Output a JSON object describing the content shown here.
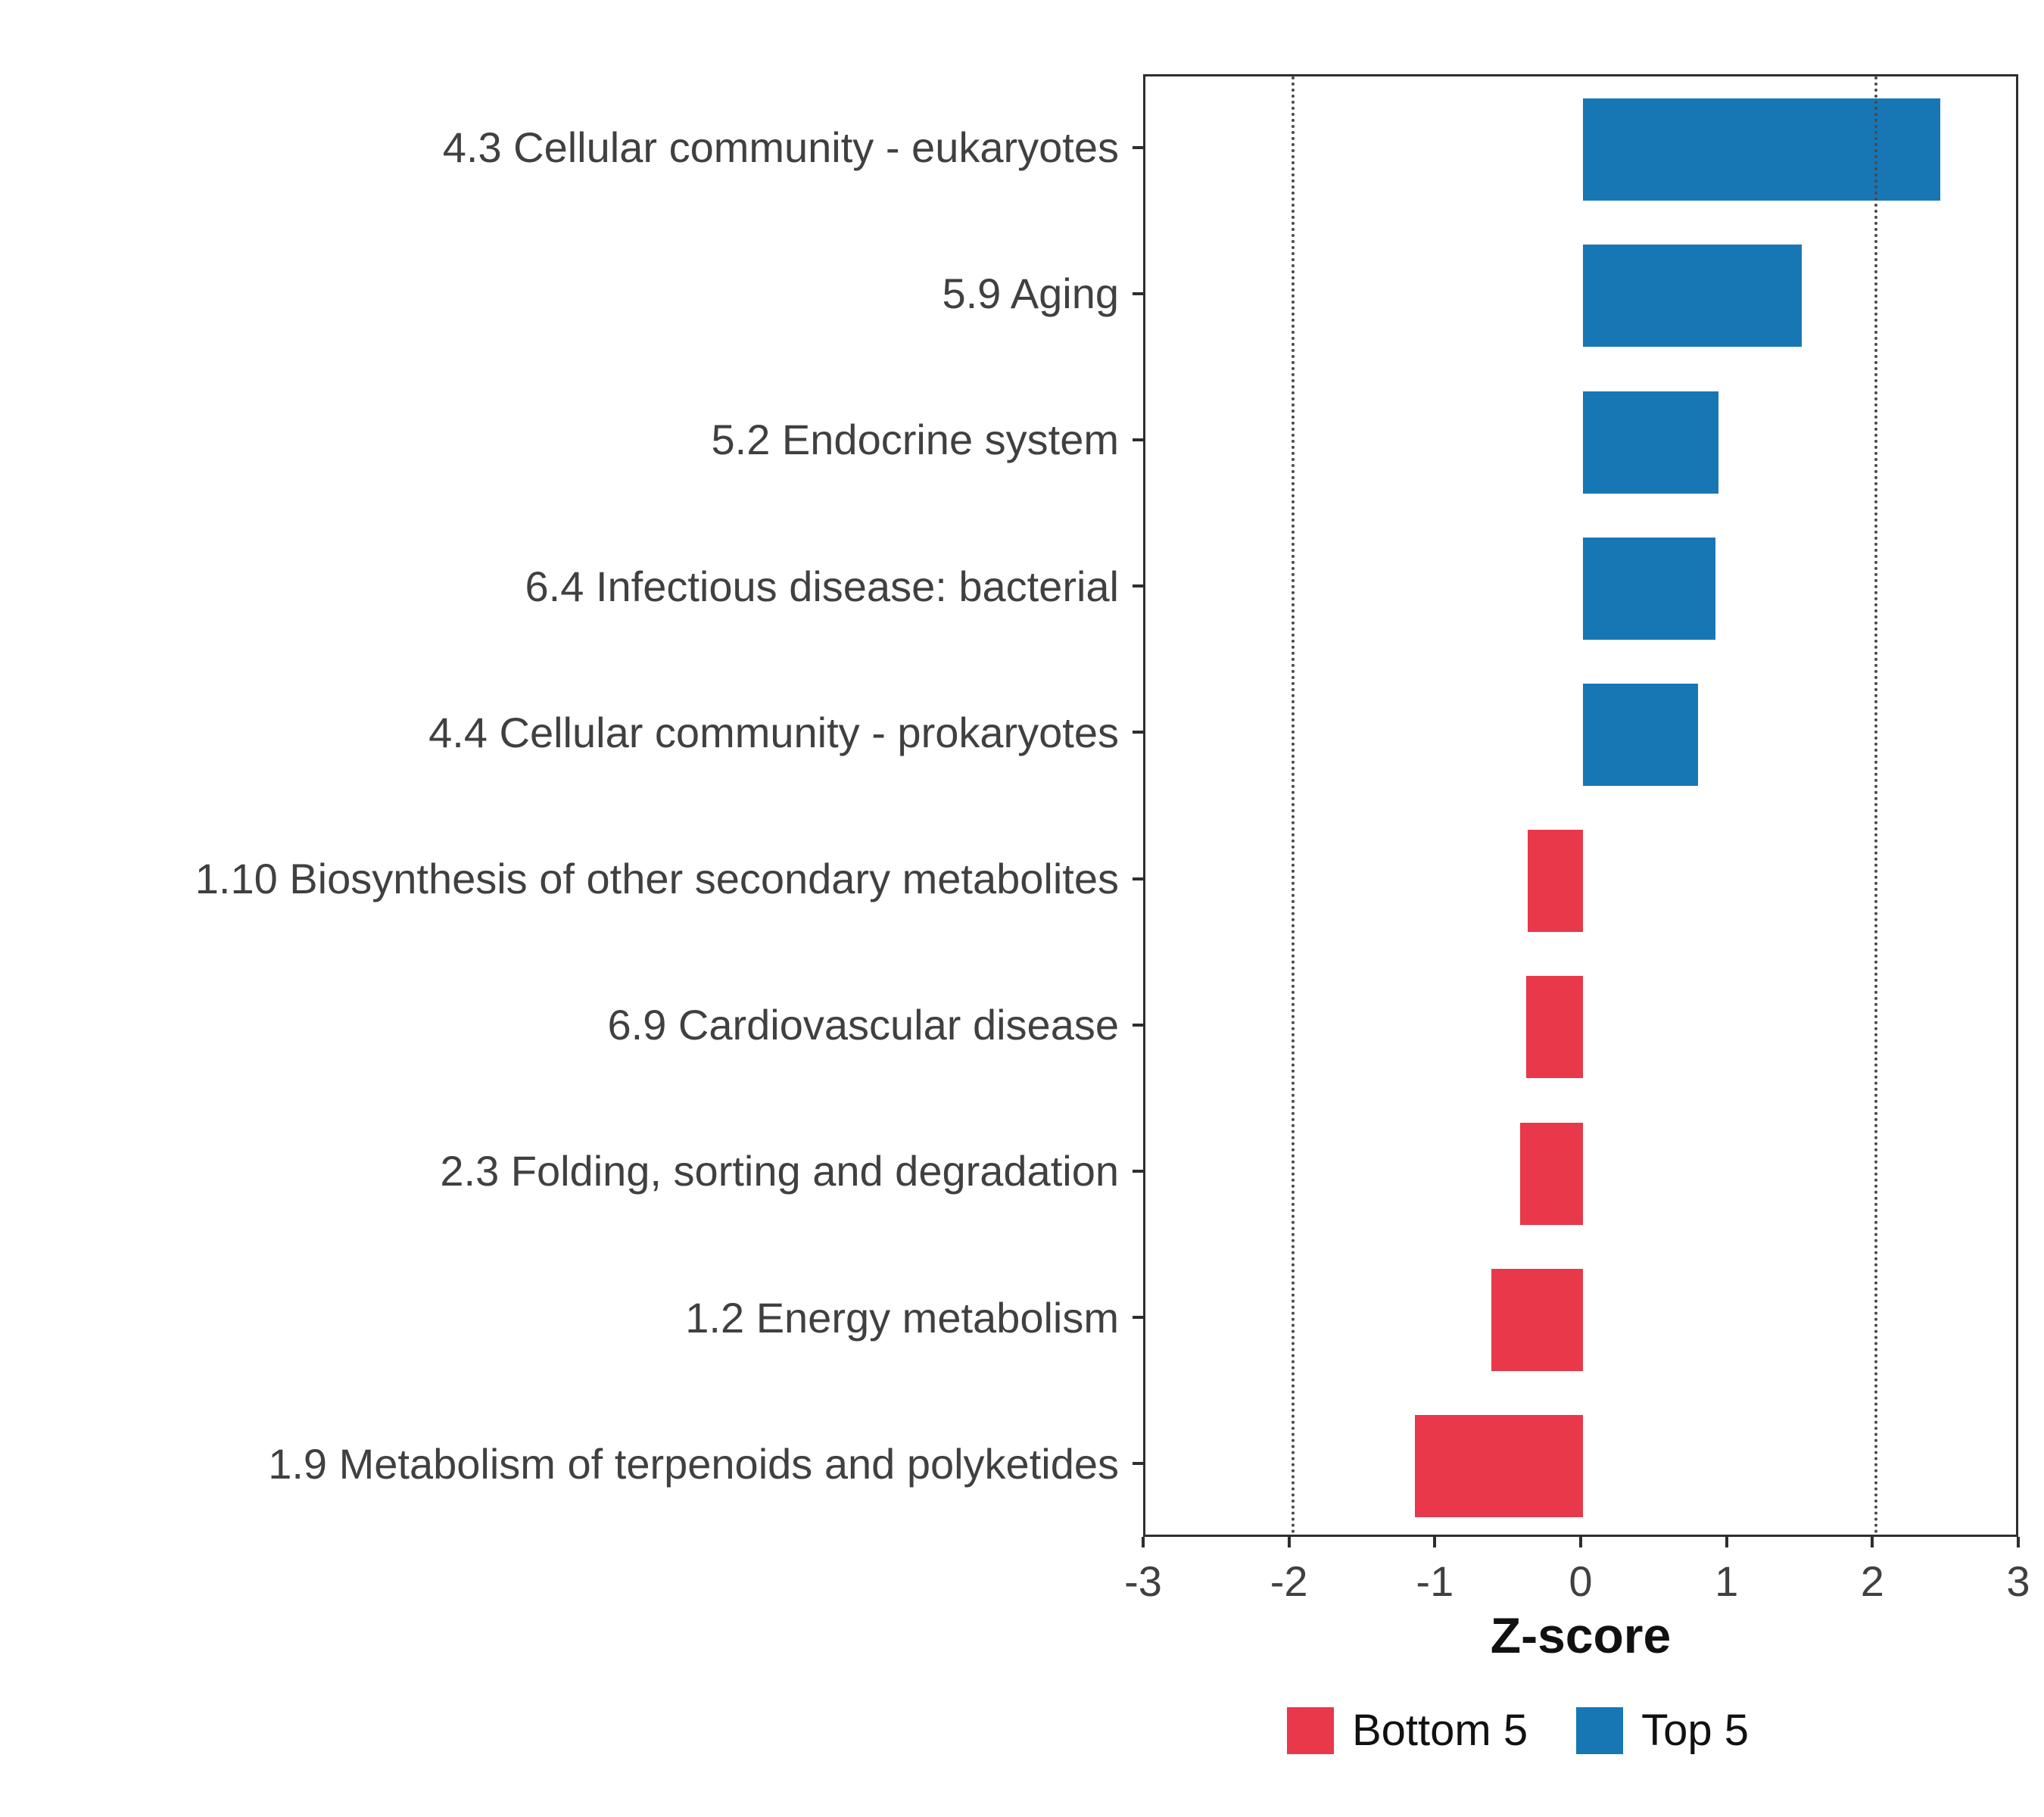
{
  "chart_data": {
    "type": "bar",
    "orientation": "horizontal",
    "title": "",
    "xlabel": "Z-score",
    "ylabel": "",
    "xlim": [
      -3,
      3
    ],
    "x_ticks": [
      -3,
      -2,
      -1,
      0,
      1,
      2,
      3
    ],
    "reference_lines": [
      -2,
      2
    ],
    "grid": "off",
    "legend_position": "bottom",
    "categories": [
      "4.3 Cellular community - eukaryotes",
      "5.9 Aging",
      "5.2 Endocrine system",
      "6.4 Infectious disease: bacterial",
      "4.4 Cellular community - prokaryotes",
      "1.10 Biosynthesis of other secondary metabolites",
      "6.9 Cardiovascular disease",
      "2.3 Folding, sorting and degradation",
      "1.2 Energy metabolism",
      "1.9 Metabolism of terpenoids and polyketides"
    ],
    "values": [
      2.45,
      1.5,
      0.93,
      0.91,
      0.79,
      -0.38,
      -0.39,
      -0.43,
      -0.63,
      -1.15
    ],
    "groups": [
      "Top 5",
      "Top 5",
      "Top 5",
      "Top 5",
      "Top 5",
      "Bottom 5",
      "Bottom 5",
      "Bottom 5",
      "Bottom 5",
      "Bottom 5"
    ],
    "colors": {
      "Top 5": "#1777B5",
      "Bottom 5": "#E8384A"
    },
    "legend": [
      {
        "label": "Bottom 5",
        "color": "#E8384A"
      },
      {
        "label": "Top 5",
        "color": "#1777B5"
      }
    ]
  }
}
